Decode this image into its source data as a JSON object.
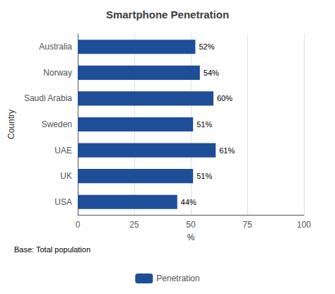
{
  "chart_data": {
    "type": "bar",
    "orientation": "horizontal",
    "title": "Smartphone Penetration",
    "categories": [
      "USA",
      "UK",
      "UAE",
      "Sweden",
      "Saudi Arabia",
      "Norway",
      "Australia"
    ],
    "series": [
      {
        "name": "Penetration",
        "color": "#1F4E99",
        "values": [
          44,
          51,
          61,
          51,
          60,
          54,
          52
        ],
        "value_labels": [
          "44%",
          "51%",
          "61%",
          "51%",
          "60%",
          "54%",
          "52%"
        ]
      }
    ],
    "data_labels": true,
    "xlabel": "%",
    "ylabel": "Country",
    "xlim": [
      0,
      100
    ],
    "xticks": [
      0,
      25,
      50,
      75,
      100
    ],
    "grid": true,
    "legend": "bottom",
    "annotations": [
      "Base: Total population"
    ]
  }
}
